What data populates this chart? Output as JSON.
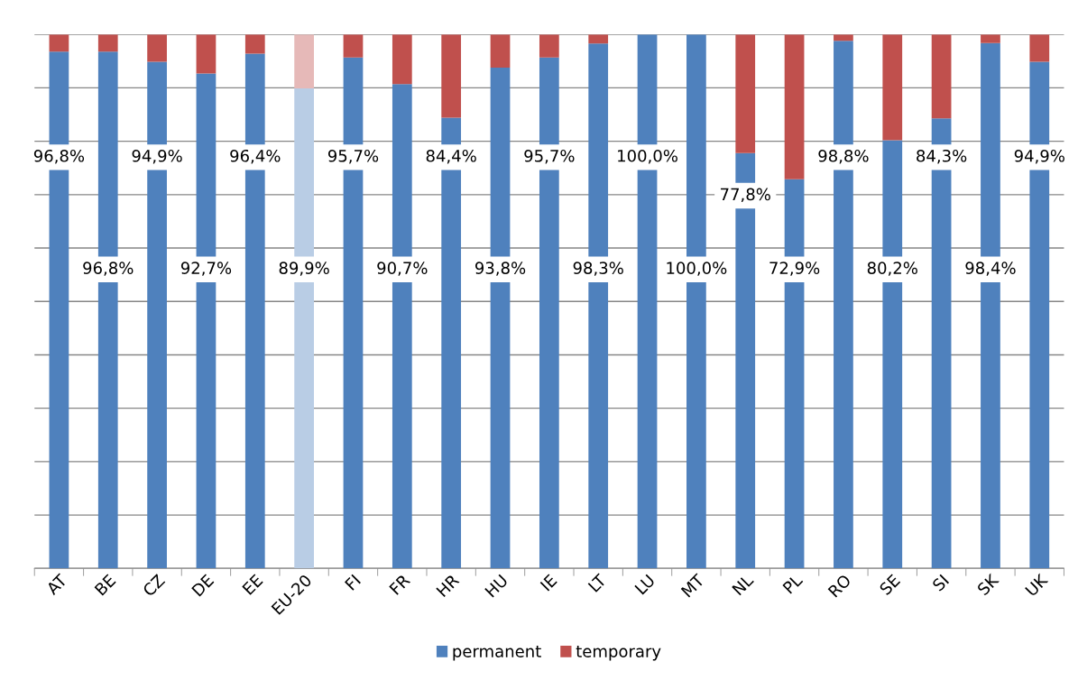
{
  "chart_data": {
    "type": "bar",
    "stacked": true,
    "categories": [
      "AT",
      "BE",
      "CZ",
      "DE",
      "EE",
      "EU-20",
      "FI",
      "FR",
      "HR",
      "HU",
      "IE",
      "LT",
      "LU",
      "MT",
      "NL",
      "PL",
      "RO",
      "SE",
      "SI",
      "SK",
      "UK"
    ],
    "series": [
      {
        "name": "permanent",
        "color": "#4f81bd",
        "colors": [
          "#4f81bd",
          "#4f81bd",
          "#4f81bd",
          "#4f81bd",
          "#4f81bd",
          "#b9cde5",
          "#4f81bd",
          "#4f81bd",
          "#4f81bd",
          "#4f81bd",
          "#4f81bd",
          "#4f81bd",
          "#4f81bd",
          "#4f81bd",
          "#4f81bd",
          "#4f81bd",
          "#4f81bd",
          "#4f81bd",
          "#4f81bd",
          "#4f81bd",
          "#4f81bd"
        ],
        "values": [
          96.8,
          96.8,
          94.9,
          92.7,
          96.4,
          89.9,
          95.7,
          90.7,
          84.4,
          93.8,
          95.7,
          98.3,
          100,
          100,
          77.8,
          72.9,
          98.8,
          80.2,
          84.3,
          98.4,
          94.9
        ],
        "value_labels": [
          "96,8%",
          "96,8%",
          "94,9%",
          "92,7%",
          "96,4%",
          "89,9%",
          "95,7%",
          "90,7%",
          "84,4%",
          "93,8%",
          "95,7%",
          "98,3%",
          "100,0%",
          "100,0%",
          "77,8%",
          "72,9%",
          "98,8%",
          "80,2%",
          "84,3%",
          "98,4%",
          "94,9%"
        ]
      },
      {
        "name": "temporary",
        "color": "#c0504d",
        "colors": [
          "#c0504d",
          "#c0504d",
          "#c0504d",
          "#c0504d",
          "#c0504d",
          "#e6b9b8",
          "#c0504d",
          "#c0504d",
          "#c0504d",
          "#c0504d",
          "#c0504d",
          "#c0504d",
          "#c0504d",
          "#c0504d",
          "#c0504d",
          "#c0504d",
          "#c0504d",
          "#c0504d",
          "#c0504d",
          "#c0504d",
          "#c0504d"
        ],
        "values": [
          3.2,
          3.2,
          5.1,
          7.3,
          3.6,
          10.1,
          4.3,
          9.3,
          15.6,
          6.2,
          4.3,
          1.7,
          0,
          0,
          22.2,
          27.1,
          1.2,
          19.8,
          15.7,
          1.6,
          5.1
        ]
      }
    ],
    "ylim": [
      0,
      100
    ],
    "yticks": [
      {
        "value": 0,
        "label": null
      },
      {
        "value": 10,
        "label": null
      },
      {
        "value": 20,
        "label": null
      },
      {
        "value": 30,
        "label": null
      },
      {
        "value": 40,
        "label": null
      },
      {
        "value": 50,
        "label": null
      },
      {
        "value": 60,
        "label": null
      },
      {
        "value": 70,
        "label": null
      },
      {
        "value": 80,
        "label": null
      },
      {
        "value": 90,
        "label": null
      },
      {
        "value": 100,
        "label": null
      }
    ],
    "tick_labels": "x",
    "grid": "y",
    "legend": "bottom"
  }
}
